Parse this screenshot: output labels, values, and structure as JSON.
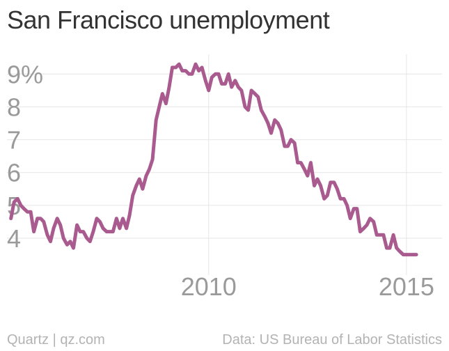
{
  "title": "San Francisco unemployment",
  "footer": {
    "source_left": "Quartz | qz.com",
    "source_right": "Data: US Bureau of Labor Statistics"
  },
  "colors": {
    "line": "#a95b8f",
    "grid": "#e6e6e6",
    "tick_text": "#9a9a9a",
    "title": "#333333",
    "footer": "#b3b3b3"
  },
  "chart_data": {
    "type": "line",
    "title": "San Francisco unemployment",
    "xlabel": "",
    "ylabel": "",
    "xlim": [
      2004.9,
      2015.9
    ],
    "ylim": [
      3.3,
      9.6
    ],
    "y_ticks": [
      4,
      5,
      6,
      7,
      8,
      9
    ],
    "y_tick_labels": [
      "4",
      "5",
      "6",
      "7",
      "8",
      "9%"
    ],
    "x_ticks": [
      2010,
      2015
    ],
    "x_tick_labels": [
      "2010",
      "2015"
    ],
    "grid": true,
    "series": [
      {
        "x": [
          2005.0,
          2005.08,
          2005.17,
          2005.25,
          2005.33,
          2005.42,
          2005.5,
          2005.58,
          2005.67,
          2005.75,
          2005.83,
          2005.92,
          2006.0,
          2006.08,
          2006.17,
          2006.25,
          2006.33,
          2006.42,
          2006.5,
          2006.58,
          2006.67,
          2006.75,
          2006.83,
          2006.92,
          2007.0,
          2007.08,
          2007.17,
          2007.25,
          2007.33,
          2007.42,
          2007.5,
          2007.58,
          2007.67,
          2007.75,
          2007.83,
          2007.92,
          2008.0,
          2008.08,
          2008.17,
          2008.25,
          2008.33,
          2008.42,
          2008.5,
          2008.58,
          2008.67,
          2008.75,
          2008.83,
          2008.92,
          2009.0,
          2009.08,
          2009.17,
          2009.25,
          2009.33,
          2009.42,
          2009.5,
          2009.58,
          2009.67,
          2009.75,
          2009.83,
          2009.92,
          2010.0,
          2010.08,
          2010.17,
          2010.25,
          2010.33,
          2010.42,
          2010.5,
          2010.58,
          2010.67,
          2010.75,
          2010.83,
          2010.92,
          2011.0,
          2011.08,
          2011.17,
          2011.25,
          2011.33,
          2011.42,
          2011.5,
          2011.58,
          2011.67,
          2011.75,
          2011.83,
          2011.92,
          2012.0,
          2012.08,
          2012.17,
          2012.25,
          2012.33,
          2012.42,
          2012.5,
          2012.58,
          2012.67,
          2012.75,
          2012.83,
          2012.92,
          2013.0,
          2013.08,
          2013.17,
          2013.25,
          2013.33,
          2013.42,
          2013.5,
          2013.58,
          2013.67,
          2013.75,
          2013.83,
          2013.92,
          2014.0,
          2014.08,
          2014.17,
          2014.25,
          2014.33,
          2014.42,
          2014.5,
          2014.58,
          2014.67,
          2014.75,
          2014.83,
          2014.92,
          2015.0,
          2015.08,
          2015.17,
          2015.25
        ],
        "values": [
          4.6,
          5.1,
          5.2,
          5.0,
          4.9,
          4.8,
          4.8,
          4.2,
          4.6,
          4.6,
          4.5,
          4.1,
          3.9,
          4.3,
          4.6,
          4.4,
          4.0,
          3.8,
          3.9,
          3.7,
          4.4,
          4.2,
          4.2,
          4.0,
          3.9,
          4.2,
          4.6,
          4.5,
          4.3,
          4.2,
          4.2,
          4.2,
          4.6,
          4.3,
          4.6,
          4.3,
          4.7,
          5.3,
          5.6,
          5.8,
          5.5,
          5.9,
          6.1,
          6.4,
          7.6,
          8.0,
          8.4,
          8.1,
          8.6,
          9.2,
          9.2,
          9.3,
          9.1,
          9.1,
          9.0,
          9.0,
          9.3,
          9.1,
          9.2,
          8.8,
          8.5,
          8.9,
          9.0,
          9.0,
          8.7,
          8.7,
          9.0,
          8.6,
          8.8,
          8.6,
          8.5,
          8.0,
          7.9,
          8.5,
          8.4,
          8.3,
          7.9,
          7.7,
          7.5,
          7.2,
          7.6,
          7.5,
          7.3,
          6.8,
          6.8,
          7.0,
          6.9,
          6.3,
          6.3,
          6.1,
          5.9,
          6.3,
          5.6,
          5.8,
          5.6,
          5.2,
          5.3,
          5.7,
          5.7,
          5.5,
          5.2,
          5.2,
          5.0,
          4.6,
          4.9,
          4.9,
          4.2,
          4.3,
          4.4,
          4.6,
          4.5,
          4.1,
          4.1,
          4.1,
          3.7,
          3.7,
          4.1,
          3.7,
          3.6,
          3.5,
          3.5,
          3.5,
          3.5,
          3.5
        ]
      }
    ]
  }
}
